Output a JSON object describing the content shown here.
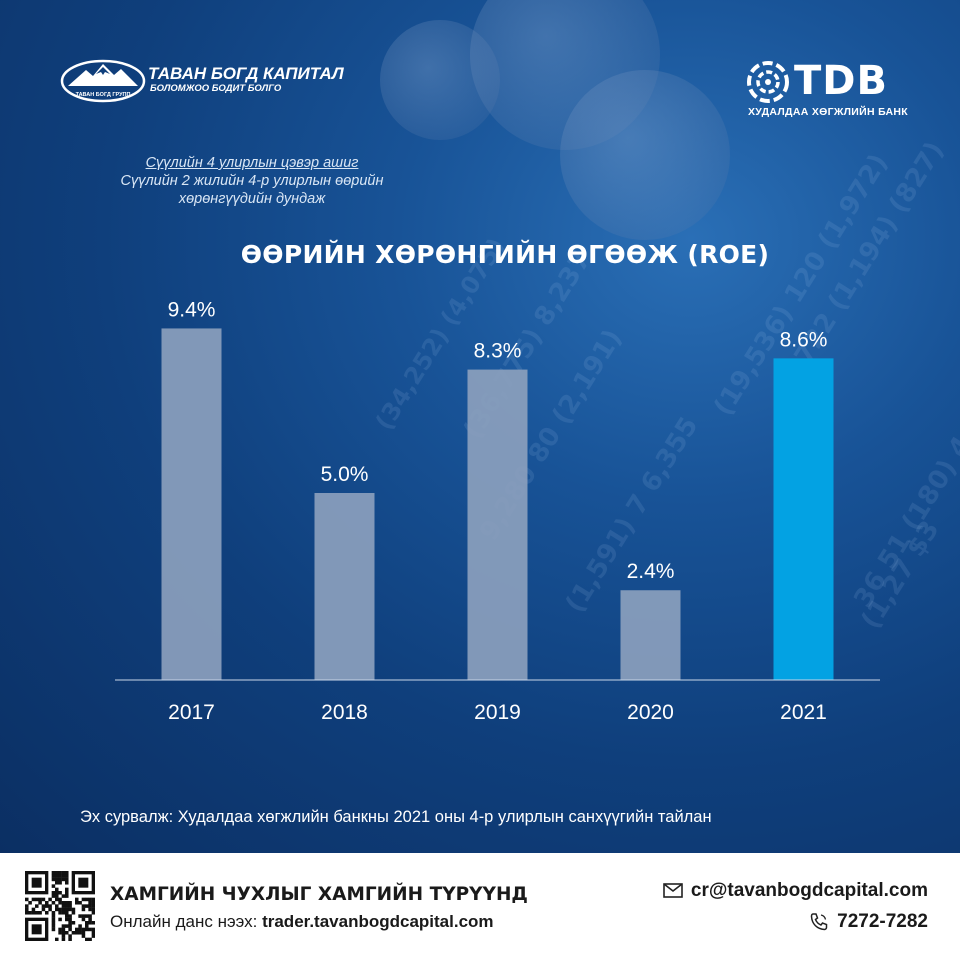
{
  "brand_left": {
    "name": "ТАВАН БОГД КАПИТАЛ",
    "slogan": "БОЛОМЖОО БОДИТ БОЛГО",
    "badge": "ТАВАН БОГД ГРУПП"
  },
  "brand_right": {
    "name": "TDB",
    "subtitle": "ХУДАЛДАА ХӨГЖЛИЙН БАНК"
  },
  "formula": {
    "numerator": "Сүүлийн 4 улирлын цэвэр ашиг",
    "denominator_line1": "Сүүлийн 2 жилийн 4-р улирлын өөрийн",
    "denominator_line2": "хөрөнгүүдийн дундаж"
  },
  "chart_data": {
    "type": "bar",
    "title": "ӨӨРИЙН ХӨРӨНГИЙН ӨГӨӨЖ (ROE)",
    "categories": [
      "2017",
      "2018",
      "2019",
      "2020",
      "2021"
    ],
    "values": [
      9.4,
      5.0,
      8.3,
      2.4,
      8.6
    ],
    "value_labels": [
      "9.4%",
      "5.0%",
      "8.3%",
      "2.4%",
      "8.6%"
    ],
    "unit": "%",
    "ylim": [
      0,
      10
    ],
    "grid": false,
    "legend": "none",
    "bar_color": "#8b9fbd",
    "highlight_index": 4,
    "highlight_color": "#03a2e3"
  },
  "source": "Эх сурвалж: Худалдаа хөгжлийн банкны 2021 оны 4-р улирлын санхүүгийн  тайлан",
  "footer": {
    "slogan": "ХАМГИЙН ЧУХЛЫГ ХАМГИЙН ТҮРҮҮНД",
    "online_label": "Онлайн данс нээх: ",
    "online_url": "trader.tavanbogdcapital.com",
    "email": "cr@tavanbogdcapital.com",
    "phone": "7272-7282",
    "icons": [
      "qr-code-icon",
      "envelope-icon",
      "phone-icon"
    ]
  },
  "colors": {
    "background": "#0f3f7c",
    "footer_bg": "#ffffff",
    "accent": "#03a2e3"
  }
}
